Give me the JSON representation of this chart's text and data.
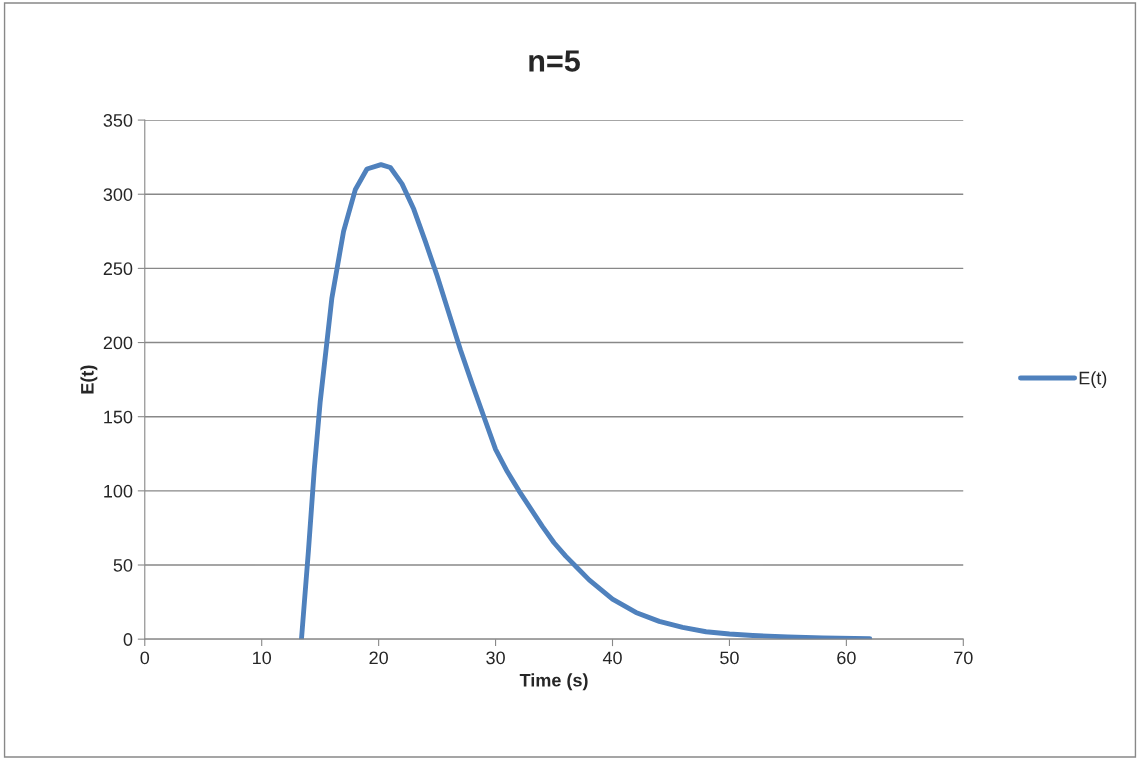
{
  "chart_data": {
    "type": "line",
    "title": "n=5",
    "xlabel": "Time (s)",
    "ylabel": "E(t)",
    "series": [
      {
        "name": "E(t)",
        "color": "#4f81bd",
        "x": [
          13.4,
          14,
          14.5,
          15,
          16,
          17,
          18,
          19,
          20.2,
          21,
          22,
          23,
          24,
          25,
          26,
          27,
          28,
          29,
          30,
          31,
          32,
          33,
          34,
          35,
          36,
          37,
          38,
          40,
          42,
          44,
          46,
          48,
          50,
          52,
          55,
          58,
          62
        ],
        "values": [
          0,
          60,
          115,
          160,
          230,
          275,
          303,
          317,
          320,
          318,
          307,
          290,
          268,
          245,
          220,
          195,
          172,
          150,
          128,
          113,
          100,
          88,
          76,
          65,
          56,
          48,
          40,
          27,
          18,
          12,
          8,
          5,
          3.5,
          2.5,
          1.5,
          0.8,
          0.4
        ]
      }
    ],
    "xlim": [
      0,
      70
    ],
    "xticks": [
      0,
      10,
      20,
      30,
      40,
      50,
      60,
      70
    ],
    "ylim": [
      0,
      350
    ],
    "yticks": [
      0,
      50,
      100,
      150,
      200,
      250,
      300,
      350
    ],
    "grid": "y",
    "legend": "right",
    "marker": "none",
    "line_style": "solid"
  }
}
